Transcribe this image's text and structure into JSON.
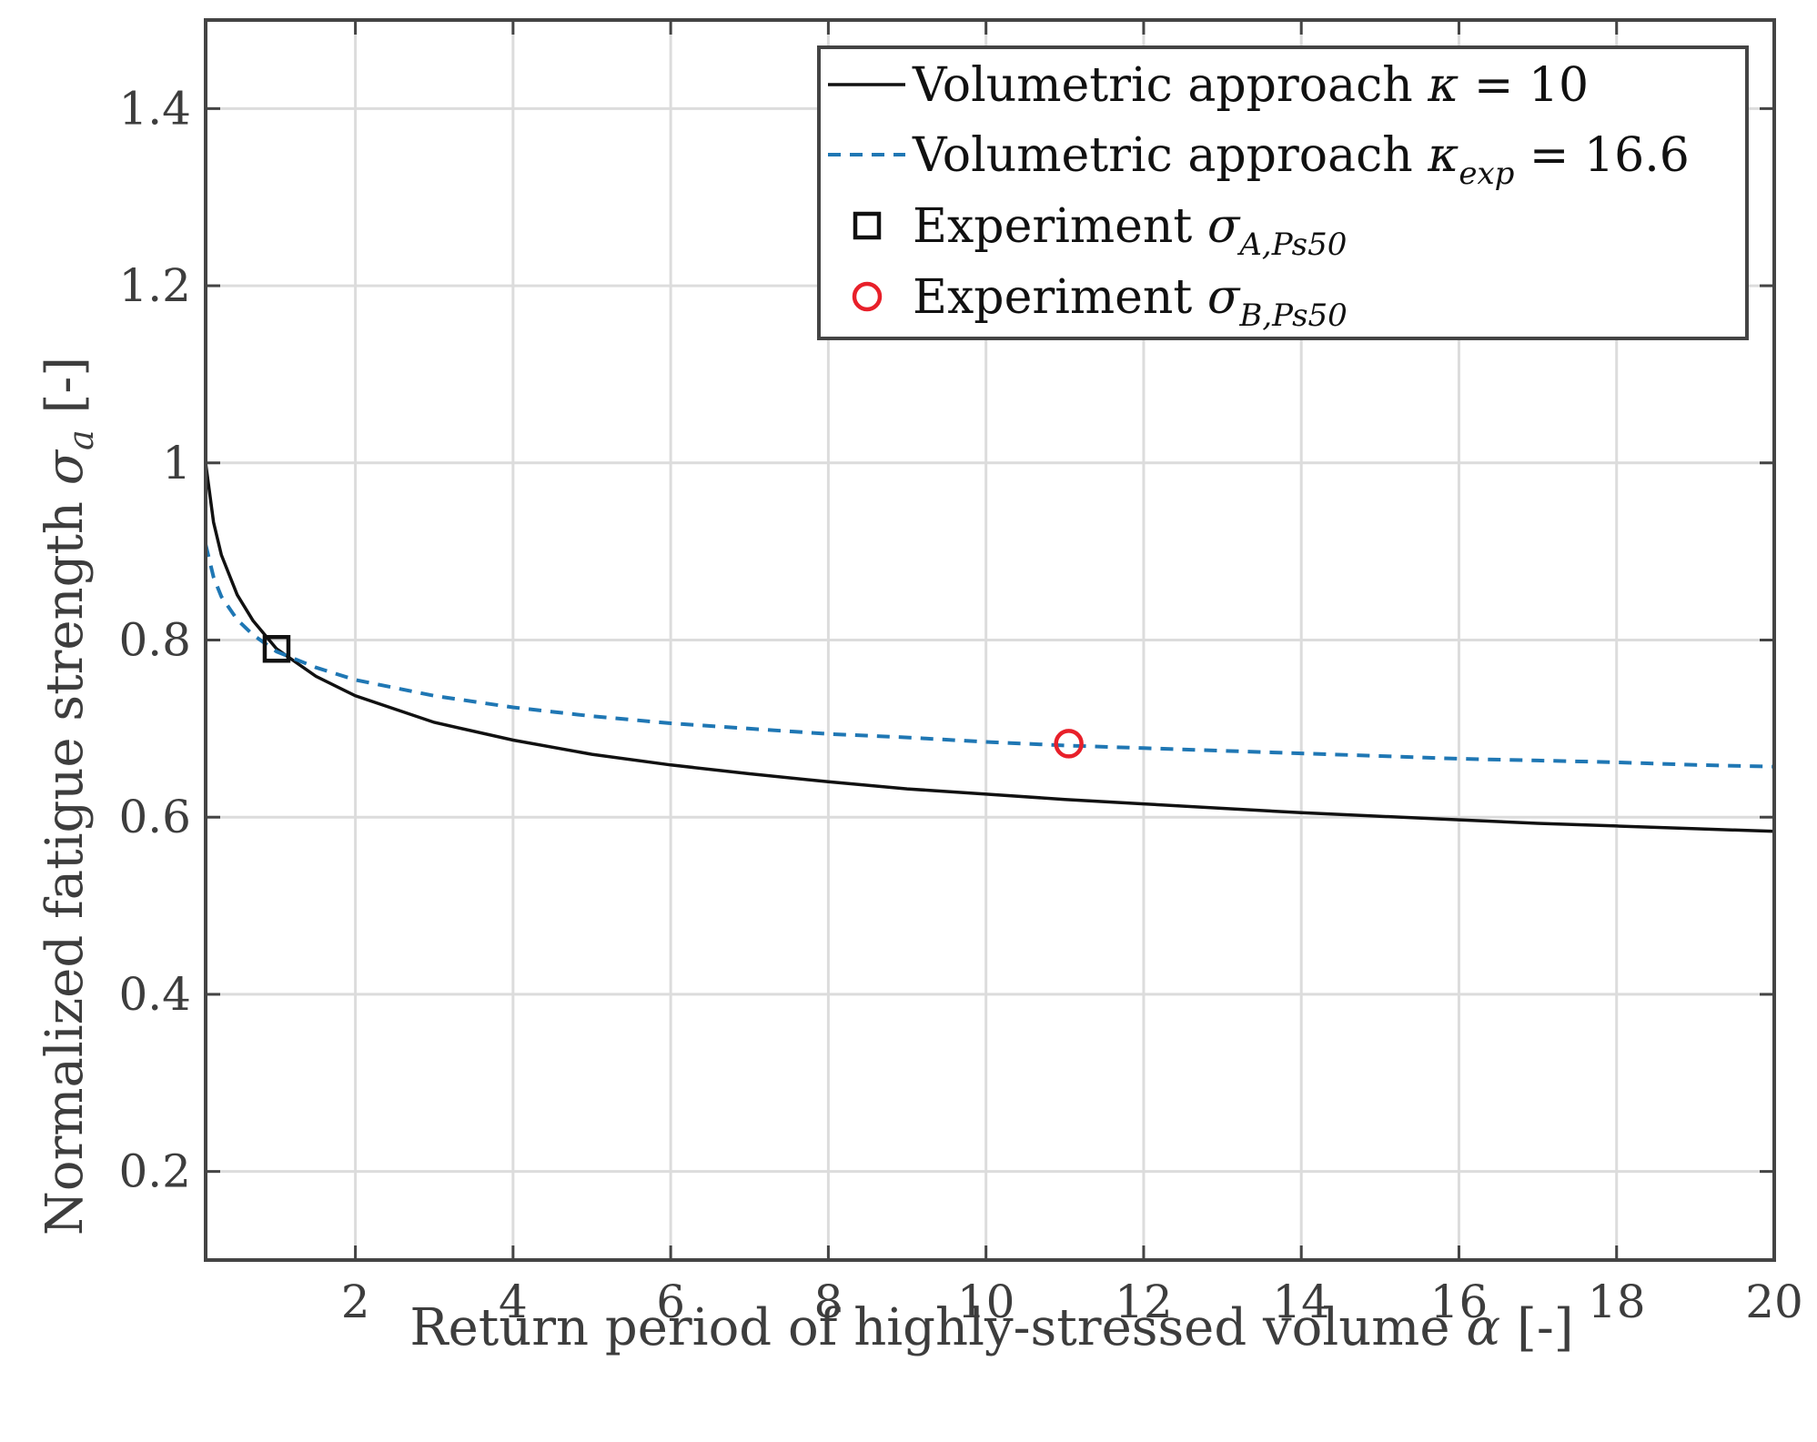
{
  "chart_data": {
    "type": "line",
    "title": "",
    "xlabel": "Return period of highly-stressed volume α [-]",
    "ylabel": "Normalized fatigue strength σa [-]",
    "xlim": [
      0.1,
      20
    ],
    "ylim": [
      0.1,
      1.5
    ],
    "xticks": [
      2,
      4,
      6,
      8,
      10,
      12,
      14,
      16,
      18,
      20
    ],
    "xtick_labels": [
      "2",
      "4",
      "6",
      "8",
      "10",
      "12",
      "14",
      "16",
      "18",
      "20"
    ],
    "yticks": [
      0.2,
      0.4,
      0.6,
      0.8,
      1.0,
      1.2,
      1.4
    ],
    "ytick_labels": [
      "0.2",
      "0.4",
      "0.6",
      "0.8",
      "1",
      "1.2",
      "1.4"
    ],
    "grid": true,
    "legend_position": "top-right",
    "series": [
      {
        "name": "Volumetric approach κ = 10",
        "legend_prefix": "Volumetric approach",
        "legend_symbol": "κ",
        "legend_subscript": "",
        "legend_suffix": " = 10",
        "style": "solid",
        "color": "#111111",
        "kappa": 10,
        "x": [
          0.1,
          0.2,
          0.3,
          0.5,
          0.7,
          1,
          1.5,
          2,
          3,
          4,
          5,
          6,
          7,
          8,
          9,
          10,
          11,
          12,
          13,
          14,
          15,
          16,
          17,
          18,
          19,
          20
        ],
        "values": [
          1.0,
          0.933,
          0.896,
          0.851,
          0.822,
          0.79,
          0.759,
          0.737,
          0.707,
          0.687,
          0.671,
          0.659,
          0.649,
          0.64,
          0.632,
          0.626,
          0.62,
          0.615,
          0.61,
          0.605,
          0.601,
          0.597,
          0.593,
          0.59,
          0.587,
          0.584
        ]
      },
      {
        "name": "Volumetric approach κexp = 16.6",
        "legend_prefix": "Volumetric approach",
        "legend_symbol": "κ",
        "legend_subscript": "exp",
        "legend_suffix": " = 16.6",
        "style": "dashed",
        "color": "#1f77b4",
        "kappa": 16.6,
        "x": [
          0.1,
          0.2,
          0.3,
          0.5,
          0.7,
          1,
          1.5,
          2,
          3,
          4,
          5,
          6,
          7,
          8,
          9,
          10,
          11,
          12,
          13,
          14,
          15,
          16,
          17,
          18,
          19,
          20
        ],
        "values": [
          0.908,
          0.871,
          0.849,
          0.823,
          0.806,
          0.787,
          0.769,
          0.755,
          0.737,
          0.724,
          0.714,
          0.706,
          0.7,
          0.694,
          0.69,
          0.685,
          0.681,
          0.678,
          0.675,
          0.672,
          0.669,
          0.666,
          0.664,
          0.662,
          0.659,
          0.657
        ]
      }
    ],
    "points": [
      {
        "name": "Experiment σA,Ps50",
        "legend_prefix": "Experiment",
        "legend_symbol": "σ",
        "legend_subscript": "A,Ps50",
        "marker": "square",
        "color": "#111111",
        "x": 1,
        "y": 0.79
      },
      {
        "name": "Experiment σB,Ps50",
        "legend_prefix": "Experiment",
        "legend_symbol": "σ",
        "legend_subscript": "B,Ps50",
        "marker": "circle",
        "color": "#e8202a",
        "x": 11.05,
        "y": 0.683
      }
    ]
  }
}
